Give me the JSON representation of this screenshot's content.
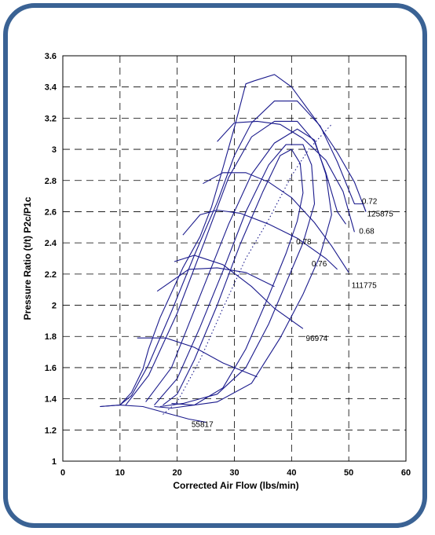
{
  "chart_data": {
    "type": "line",
    "title": "",
    "xlabel": "Corrected Air Flow (lbs/min)",
    "ylabel": "Pressure Ratio (t/t) P2c/P1c",
    "xlim": [
      0,
      60
    ],
    "ylim": [
      1,
      3.6
    ],
    "xticks": [
      "0",
      "10",
      "20",
      "30",
      "40",
      "50",
      "60"
    ],
    "yticks": [
      "1",
      "1.2",
      "1.4",
      "1.6",
      "1.8",
      "2",
      "2.2",
      "2.4",
      "2.6",
      "2.8",
      "3",
      "3.2",
      "3.4",
      "3.6"
    ],
    "grid": true,
    "colors": {
      "lines": "#1a1a8c",
      "frame": "#3a6294"
    },
    "speed_lines": [
      {
        "label": "55817",
        "points": [
          [
            6.5,
            1.35
          ],
          [
            10,
            1.36
          ],
          [
            14,
            1.35
          ],
          [
            18,
            1.31
          ],
          [
            22,
            1.27
          ],
          [
            25,
            1.25
          ]
        ]
      },
      {
        "label": "",
        "points": [
          [
            13,
            1.79
          ],
          [
            18,
            1.79
          ],
          [
            23,
            1.73
          ],
          [
            28,
            1.63
          ],
          [
            34,
            1.54
          ]
        ]
      },
      {
        "label": "",
        "points": [
          [
            16.5,
            2.09
          ],
          [
            22,
            2.23
          ],
          [
            27,
            2.24
          ],
          [
            32,
            2.21
          ],
          [
            37,
            2.12
          ]
        ]
      },
      {
        "label": "96974",
        "points": [
          [
            19.5,
            2.28
          ],
          [
            23,
            2.32
          ],
          [
            28,
            2.26
          ],
          [
            33,
            2.12
          ],
          [
            37,
            1.98
          ],
          [
            42,
            1.85
          ]
        ]
      },
      {
        "label": "",
        "points": [
          [
            21,
            2.45
          ],
          [
            24,
            2.58
          ],
          [
            27,
            2.61
          ],
          [
            31,
            2.59
          ],
          [
            36,
            2.52
          ],
          [
            41,
            2.43
          ],
          [
            46,
            2.3
          ],
          [
            48,
            2.23
          ]
        ]
      },
      {
        "label": "111775",
        "points": [
          [
            24.5,
            2.78
          ],
          [
            28,
            2.85
          ],
          [
            32,
            2.85
          ],
          [
            36,
            2.79
          ],
          [
            40,
            2.69
          ],
          [
            44,
            2.53
          ],
          [
            47,
            2.38
          ],
          [
            50,
            2.21
          ]
        ]
      },
      {
        "label": "",
        "points": [
          [
            27,
            3.05
          ],
          [
            30,
            3.17
          ],
          [
            34,
            3.18
          ],
          [
            38,
            3.16
          ],
          [
            42,
            3.07
          ],
          [
            46,
            2.93
          ],
          [
            49,
            2.73
          ],
          [
            51,
            2.47
          ]
        ]
      },
      {
        "label": "125875",
        "points": [
          [
            33.5,
            3.44
          ],
          [
            37,
            3.48
          ],
          [
            40,
            3.4
          ],
          [
            44,
            3.2
          ],
          [
            48,
            2.98
          ],
          [
            51,
            2.79
          ],
          [
            53,
            2.6
          ]
        ]
      }
    ],
    "surge_line": [
      [
        6.5,
        1.35
      ],
      [
        10,
        1.36
      ],
      [
        12,
        1.44
      ],
      [
        14,
        1.59
      ],
      [
        15,
        1.72
      ],
      [
        17,
        1.92
      ],
      [
        18,
        2.0
      ],
      [
        21,
        2.24
      ],
      [
        24,
        2.44
      ],
      [
        26,
        2.63
      ],
      [
        28,
        2.88
      ],
      [
        30,
        3.14
      ],
      [
        32,
        3.42
      ],
      [
        33.5,
        3.44
      ]
    ],
    "efficiency_islands": [
      {
        "label": "0.72",
        "points": [
          [
            10,
            1.36
          ],
          [
            12,
            1.42
          ],
          [
            15,
            1.62
          ],
          [
            19,
            1.96
          ],
          [
            23,
            2.32
          ],
          [
            27,
            2.66
          ],
          [
            30,
            2.96
          ],
          [
            33,
            3.17
          ],
          [
            37,
            3.31
          ],
          [
            41,
            3.31
          ],
          [
            45,
            3.15
          ],
          [
            48,
            2.92
          ],
          [
            51,
            2.65
          ],
          [
            52.5,
            2.65
          ],
          [
            53,
            2.6
          ]
        ]
      },
      {
        "label": "0.68",
        "points": [
          [
            11,
            1.36
          ],
          [
            15,
            1.55
          ],
          [
            20,
            1.95
          ],
          [
            25,
            2.43
          ],
          [
            29,
            2.82
          ],
          [
            33,
            3.08
          ],
          [
            37,
            3.18
          ],
          [
            41,
            3.18
          ],
          [
            44,
            3.05
          ],
          [
            46,
            2.85
          ],
          [
            48,
            2.6
          ],
          [
            49.5,
            2.52
          ]
        ]
      },
      {
        "label": "0.78",
        "points": [
          [
            17.5,
            1.36
          ],
          [
            20,
            1.43
          ],
          [
            23,
            1.65
          ],
          [
            27,
            2.0
          ],
          [
            31,
            2.39
          ],
          [
            35,
            2.73
          ],
          [
            38,
            2.96
          ],
          [
            40,
            3.0
          ],
          [
            41.5,
            2.91
          ],
          [
            42,
            2.72
          ],
          [
            41,
            2.54
          ],
          [
            39,
            2.33
          ],
          [
            36,
            2.06
          ],
          [
            32,
            1.72
          ],
          [
            28,
            1.47
          ],
          [
            23,
            1.36
          ],
          [
            19,
            1.37
          ]
        ]
      },
      {
        "label": "0.76",
        "points": [
          [
            16,
            1.36
          ],
          [
            20,
            1.53
          ],
          [
            24,
            1.86
          ],
          [
            28,
            2.22
          ],
          [
            32,
            2.6
          ],
          [
            36,
            2.9
          ],
          [
            39,
            3.03
          ],
          [
            42,
            3.03
          ],
          [
            43.5,
            2.9
          ],
          [
            44,
            2.65
          ],
          [
            42,
            2.4
          ],
          [
            39,
            2.14
          ],
          [
            36,
            1.88
          ],
          [
            32,
            1.6
          ],
          [
            27,
            1.43
          ],
          [
            21,
            1.37
          ],
          [
            17,
            1.35
          ]
        ]
      },
      {
        "label": "",
        "points": [
          [
            14.5,
            1.38
          ],
          [
            19,
            1.6
          ],
          [
            24,
            2.06
          ],
          [
            29,
            2.52
          ],
          [
            33,
            2.84
          ],
          [
            37,
            3.04
          ],
          [
            41,
            3.13
          ],
          [
            44,
            3.06
          ],
          [
            46,
            2.84
          ],
          [
            47,
            2.58
          ],
          [
            45,
            2.32
          ],
          [
            42,
            2.07
          ],
          [
            38,
            1.79
          ],
          [
            33,
            1.5
          ],
          [
            27,
            1.38
          ],
          [
            19,
            1.34
          ],
          [
            16,
            1.35
          ]
        ]
      }
    ],
    "operating_line": [
      [
        17.5,
        1.3
      ],
      [
        20,
        1.38
      ],
      [
        24,
        1.65
      ],
      [
        28,
        1.98
      ],
      [
        32,
        2.3
      ],
      [
        36,
        2.55
      ],
      [
        40,
        2.83
      ],
      [
        43,
        3.0
      ],
      [
        47,
        3.16
      ]
    ],
    "annotations": [
      {
        "text": "0.72",
        "x": 52.3,
        "y": 2.67
      },
      {
        "text": "125875",
        "x": 53.2,
        "y": 2.59
      },
      {
        "text": "0.68",
        "x": 51.8,
        "y": 2.48
      },
      {
        "text": "0.78",
        "x": 40.8,
        "y": 2.41
      },
      {
        "text": "0.76",
        "x": 43.5,
        "y": 2.27
      },
      {
        "text": "111775",
        "x": 50.5,
        "y": 2.13
      },
      {
        "text": "96974",
        "x": 42.5,
        "y": 1.79
      },
      {
        "text": "55817",
        "x": 22.5,
        "y": 1.24
      }
    ]
  }
}
